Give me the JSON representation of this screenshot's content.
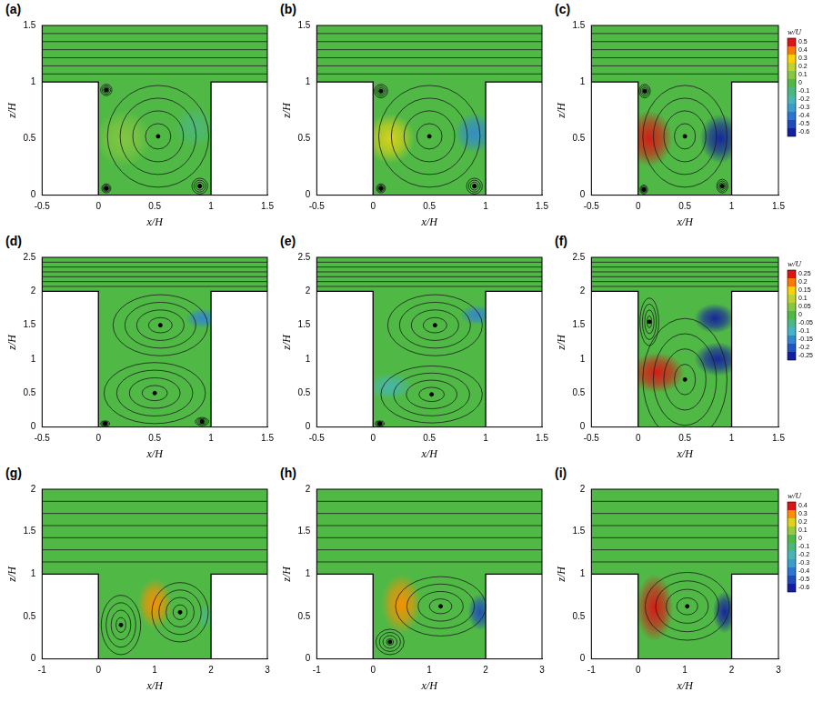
{
  "chart_data": [
    {
      "type": "scatter",
      "title": "(a)",
      "x_label": "x/H",
      "y_label": "z/H",
      "grid": false,
      "xlim": [
        -0.5,
        1.5
      ],
      "ylim": [
        0,
        1.5
      ],
      "xticks": [
        -0.5,
        0,
        0.5,
        1,
        1.5
      ],
      "yticks": [
        0,
        0.5,
        1,
        1.5
      ],
      "cavity": {
        "x": [
          0,
          1
        ],
        "z": [
          0,
          1
        ]
      },
      "vortices": [
        {
          "x": 0.53,
          "z": 0.52,
          "rx": 0.45,
          "rz": 0.45
        },
        {
          "x": 0.07,
          "z": 0.93,
          "rx": 0.05,
          "rz": 0.05
        },
        {
          "x": 0.9,
          "z": 0.08,
          "rx": 0.07,
          "rz": 0.07
        },
        {
          "x": 0.07,
          "z": 0.06,
          "rx": 0.04,
          "rz": 0.04
        }
      ],
      "w_regions": [
        {
          "x": 0.22,
          "z": 0.5,
          "r": 0.25,
          "w": 0.1
        },
        {
          "x": 0.85,
          "z": 0.6,
          "r": 0.18,
          "w": -0.1
        }
      ]
    },
    {
      "type": "scatter",
      "title": "(b)",
      "x_label": "x/H",
      "y_label": "z/H",
      "grid": false,
      "xlim": [
        -0.5,
        1.5
      ],
      "ylim": [
        0,
        1.5
      ],
      "xticks": [
        -0.5,
        0,
        0.5,
        1,
        1.5
      ],
      "yticks": [
        0,
        0.5,
        1,
        1.5
      ],
      "cavity": {
        "x": [
          0,
          1
        ],
        "z": [
          0,
          1
        ]
      },
      "vortices": [
        {
          "x": 0.5,
          "z": 0.52,
          "rx": 0.45,
          "rz": 0.45
        },
        {
          "x": 0.07,
          "z": 0.92,
          "rx": 0.06,
          "rz": 0.06
        },
        {
          "x": 0.9,
          "z": 0.08,
          "rx": 0.07,
          "rz": 0.07
        },
        {
          "x": 0.07,
          "z": 0.06,
          "rx": 0.04,
          "rz": 0.04
        }
      ],
      "w_regions": [
        {
          "x": 0.15,
          "z": 0.5,
          "r": 0.22,
          "w": 0.25
        },
        {
          "x": 0.9,
          "z": 0.55,
          "r": 0.18,
          "w": -0.35
        }
      ]
    },
    {
      "type": "scatter",
      "title": "(c)",
      "x_label": "x/H",
      "y_label": "z/H",
      "grid": false,
      "xlim": [
        -0.5,
        1.5
      ],
      "ylim": [
        0,
        1.5
      ],
      "xticks": [
        -0.5,
        0,
        0.5,
        1,
        1.5
      ],
      "yticks": [
        0,
        0.5,
        1,
        1.5
      ],
      "cavity": {
        "x": [
          0,
          1
        ],
        "z": [
          0,
          1
        ]
      },
      "vortices": [
        {
          "x": 0.5,
          "z": 0.52,
          "rx": 0.45,
          "rz": 0.45
        },
        {
          "x": 0.07,
          "z": 0.92,
          "rx": 0.06,
          "rz": 0.06
        },
        {
          "x": 0.9,
          "z": 0.08,
          "rx": 0.06,
          "rz": 0.06
        },
        {
          "x": 0.06,
          "z": 0.05,
          "rx": 0.04,
          "rz": 0.04
        }
      ],
      "w_regions": [
        {
          "x": 0.12,
          "z": 0.5,
          "r": 0.25,
          "w": 0.5
        },
        {
          "x": 0.88,
          "z": 0.5,
          "r": 0.22,
          "w": -0.6
        }
      ],
      "colorbar": {
        "label": "w/U",
        "range": [
          -0.6,
          0.5
        ],
        "ticks": [
          0.5,
          0.4,
          0.3,
          0.2,
          0.1,
          0,
          -0.1,
          -0.2,
          -0.3,
          -0.4,
          -0.5,
          -0.6
        ]
      }
    },
    {
      "type": "scatter",
      "title": "(d)",
      "x_label": "x/H",
      "y_label": "z/H",
      "grid": false,
      "xlim": [
        -0.5,
        1.5
      ],
      "ylim": [
        0,
        2.5
      ],
      "xticks": [
        -0.5,
        0,
        0.5,
        1,
        1.5
      ],
      "yticks": [
        0,
        0.5,
        1,
        1.5,
        2,
        2.5
      ],
      "cavity": {
        "x": [
          0,
          1
        ],
        "z": [
          0,
          2
        ]
      },
      "vortices": [
        {
          "x": 0.55,
          "z": 1.5,
          "rx": 0.42,
          "rz": 0.45
        },
        {
          "x": 0.5,
          "z": 0.5,
          "rx": 0.45,
          "rz": 0.45
        },
        {
          "x": 0.92,
          "z": 0.08,
          "rx": 0.06,
          "rz": 0.06
        },
        {
          "x": 0.06,
          "z": 0.05,
          "rx": 0.04,
          "rz": 0.04
        }
      ],
      "w_regions": [
        {
          "x": 0.92,
          "z": 1.6,
          "r": 0.15,
          "w": -0.15
        }
      ]
    },
    {
      "type": "scatter",
      "title": "(e)",
      "x_label": "x/H",
      "y_label": "z/H",
      "grid": false,
      "xlim": [
        -0.5,
        1.5
      ],
      "ylim": [
        0,
        2.5
      ],
      "xticks": [
        -0.5,
        0,
        0.5,
        1,
        1.5
      ],
      "yticks": [
        0,
        0.5,
        1,
        1.5,
        2,
        2.5
      ],
      "cavity": {
        "x": [
          0,
          1
        ],
        "z": [
          0,
          2
        ]
      },
      "vortices": [
        {
          "x": 0.55,
          "z": 1.5,
          "rx": 0.42,
          "rz": 0.45
        },
        {
          "x": 0.52,
          "z": 0.48,
          "rx": 0.45,
          "rz": 0.42
        },
        {
          "x": 0.06,
          "z": 0.05,
          "rx": 0.04,
          "rz": 0.04
        }
      ],
      "w_regions": [
        {
          "x": 0.92,
          "z": 1.65,
          "r": 0.15,
          "w": -0.15
        },
        {
          "x": 0.15,
          "z": 0.6,
          "r": 0.2,
          "w": -0.08
        }
      ]
    },
    {
      "type": "scatter",
      "title": "(f)",
      "x_label": "x/H",
      "y_label": "z/H",
      "grid": false,
      "xlim": [
        -0.5,
        1.5
      ],
      "ylim": [
        0,
        2.5
      ],
      "xticks": [
        -0.5,
        0,
        0.5,
        1,
        1.5
      ],
      "yticks": [
        0,
        0.5,
        1,
        1.5,
        2,
        2.5
      ],
      "cavity": {
        "x": [
          0,
          1
        ],
        "z": [
          0,
          2
        ]
      },
      "vortices": [
        {
          "x": 0.5,
          "z": 0.7,
          "rx": 0.45,
          "rz": 0.9
        },
        {
          "x": 0.12,
          "z": 1.55,
          "rx": 0.1,
          "rz": 0.35
        }
      ],
      "w_regions": [
        {
          "x": 0.2,
          "z": 0.8,
          "r": 0.3,
          "w": 0.25
        },
        {
          "x": 0.85,
          "z": 1.0,
          "r": 0.25,
          "w": -0.25
        },
        {
          "x": 0.82,
          "z": 1.6,
          "r": 0.22,
          "w": -0.25
        }
      ],
      "colorbar": {
        "label": "w/U",
        "range": [
          -0.25,
          0.25
        ],
        "ticks": [
          0.25,
          0.2,
          0.15,
          0.1,
          0.05,
          0,
          -0.05,
          -0.1,
          -0.15,
          -0.2,
          -0.25
        ]
      }
    },
    {
      "type": "scatter",
      "title": "(g)",
      "x_label": "x/H",
      "y_label": "z/H",
      "grid": false,
      "xlim": [
        -1,
        3
      ],
      "ylim": [
        0,
        2
      ],
      "xticks": [
        -1,
        0,
        1,
        2,
        3
      ],
      "yticks": [
        0,
        0.5,
        1,
        1.5,
        2
      ],
      "cavity": {
        "x": [
          0,
          2
        ],
        "z": [
          0,
          1
        ]
      },
      "vortices": [
        {
          "x": 0.4,
          "z": 0.4,
          "rx": 0.35,
          "rz": 0.35
        },
        {
          "x": 1.45,
          "z": 0.55,
          "rx": 0.5,
          "rz": 0.35
        }
      ],
      "w_regions": [
        {
          "x": 1.0,
          "z": 0.65,
          "r": 0.3,
          "w": 0.3
        },
        {
          "x": 1.9,
          "z": 0.5,
          "r": 0.15,
          "w": -0.1
        }
      ]
    },
    {
      "type": "scatter",
      "title": "(h)",
      "x_label": "x/H",
      "y_label": "z/H",
      "grid": false,
      "xlim": [
        -1,
        3
      ],
      "ylim": [
        0,
        2
      ],
      "xticks": [
        -1,
        0,
        1,
        2,
        3
      ],
      "yticks": [
        0,
        0.5,
        1,
        1.5,
        2
      ],
      "cavity": {
        "x": [
          0,
          2
        ],
        "z": [
          0,
          1
        ]
      },
      "vortices": [
        {
          "x": 1.2,
          "z": 0.62,
          "rx": 0.8,
          "rz": 0.35
        },
        {
          "x": 0.3,
          "z": 0.2,
          "rx": 0.25,
          "rz": 0.15
        }
      ],
      "w_regions": [
        {
          "x": 0.5,
          "z": 0.65,
          "r": 0.35,
          "w": 0.3
        },
        {
          "x": 1.9,
          "z": 0.55,
          "r": 0.22,
          "w": -0.5
        }
      ]
    },
    {
      "type": "scatter",
      "title": "(i)",
      "x_label": "x/H",
      "y_label": "z/H",
      "grid": false,
      "xlim": [
        -1,
        3
      ],
      "ylim": [
        0,
        2
      ],
      "xticks": [
        -1,
        0,
        1,
        2,
        3
      ],
      "yticks": [
        0,
        0.5,
        1,
        1.5,
        2
      ],
      "cavity": {
        "x": [
          0,
          2
        ],
        "z": [
          0,
          1
        ]
      },
      "vortices": [
        {
          "x": 1.05,
          "z": 0.62,
          "rx": 0.9,
          "rz": 0.4
        }
      ],
      "w_regions": [
        {
          "x": 0.35,
          "z": 0.6,
          "r": 0.4,
          "w": 0.4
        },
        {
          "x": 1.85,
          "z": 0.55,
          "r": 0.25,
          "w": -0.6
        }
      ],
      "colorbar": {
        "label": "w/U",
        "range": [
          -0.6,
          0.4
        ],
        "ticks": [
          0.4,
          0.3,
          0.2,
          0.1,
          0,
          -0.1,
          -0.2,
          -0.3,
          -0.4,
          -0.5,
          -0.6
        ]
      }
    }
  ]
}
